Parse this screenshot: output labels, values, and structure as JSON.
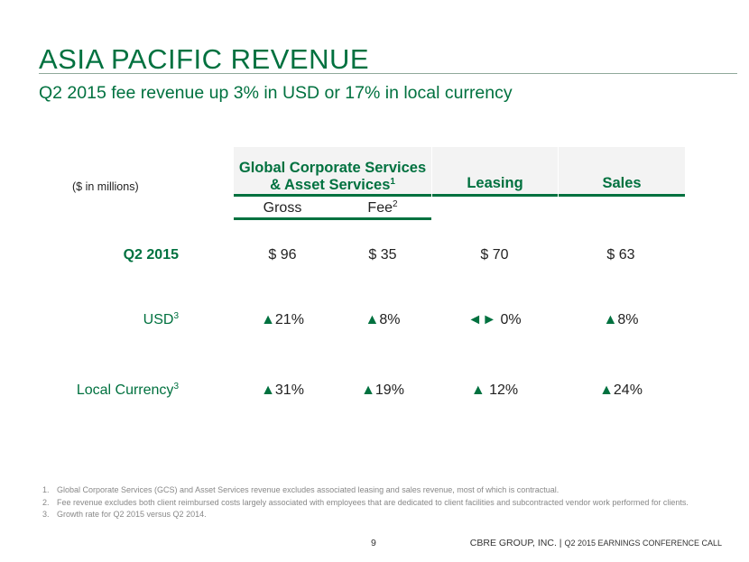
{
  "title": "ASIA PACIFIC REVENUE",
  "subtitle": "Q2 2015 fee revenue up 3% in USD or 17% in local currency",
  "table": {
    "units_note": "($ in millions)",
    "headers": {
      "gcs_line1": "Global Corporate Services",
      "gcs_line2": "& Asset Services",
      "gcs_sup": "1",
      "leasing": "Leasing",
      "sales": "Sales"
    },
    "subheaders": {
      "gross": "Gross",
      "fee": "Fee",
      "fee_sup": "2"
    },
    "rows": [
      {
        "label": "Q2 2015",
        "label_sup": "",
        "gross": "$ 96",
        "fee": "$ 35",
        "leasing": "$ 70",
        "sales": "$ 63"
      },
      {
        "label": "USD",
        "label_sup": "3",
        "gross": "21%",
        "fee": "8%",
        "leasing": "0%",
        "sales": "8%"
      },
      {
        "label": "Local Currency",
        "label_sup": "3",
        "gross": "31%",
        "fee": "19%",
        "leasing": "12%",
        "sales": "24%"
      }
    ],
    "symbols": {
      "up": "▲",
      "flat": "◄►"
    },
    "accent_color": "#00713f"
  },
  "footnotes": [
    {
      "num": "1.",
      "text": "Global Corporate Services (GCS) and Asset Services revenue excludes associated leasing and sales revenue, most of which is contractual."
    },
    {
      "num": "2.",
      "text": "Fee revenue excludes both client reimbursed costs largely associated with employees that are dedicated to client facilities and subcontracted vendor work performed for clients."
    },
    {
      "num": "3.",
      "text": "Growth rate for Q2 2015 versus Q2 2014."
    }
  ],
  "footer": {
    "page_number": "9",
    "company": "CBRE GROUP, INC. |",
    "event": "Q2 2015 EARNINGS CONFERENCE CALL"
  }
}
